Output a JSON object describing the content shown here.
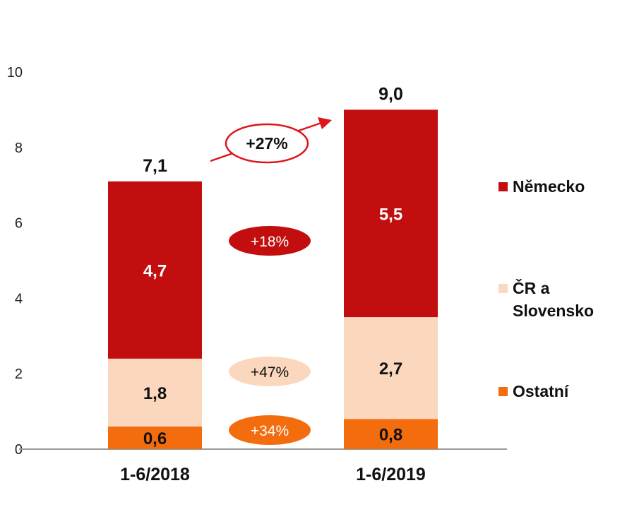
{
  "chart_data": {
    "type": "bar",
    "stacked": true,
    "categories": [
      "1-6/2018",
      "1-6/2019"
    ],
    "series": [
      {
        "name": "Ostatní",
        "values": [
          0.6,
          0.8
        ],
        "labels": [
          "0,6",
          "0,8"
        ],
        "color": "#F36C0E",
        "label_color": "#111111"
      },
      {
        "name": "ČR a Slovensko",
        "values": [
          1.8,
          2.7
        ],
        "labels": [
          "1,8",
          "2,7"
        ],
        "color": "#FAD7BD",
        "label_color": "#111111"
      },
      {
        "name": "Německo",
        "values": [
          4.7,
          5.5
        ],
        "labels": [
          "4,7",
          "5,5"
        ],
        "color": "#C20E0E",
        "label_color": "#ffffff"
      }
    ],
    "totals": [
      {
        "value": 7.1,
        "label": "7,1"
      },
      {
        "value": 9.0,
        "label": "9,0"
      }
    ],
    "yticks": [
      "0",
      "2",
      "4",
      "6",
      "8",
      "10"
    ],
    "ylim": [
      0,
      10
    ],
    "legend_position": "right",
    "growth_badges": [
      {
        "series": "Německo",
        "label": "+18%",
        "fill": "#C20E0E",
        "text_color": "#ffffff"
      },
      {
        "series": "ČR a Slovensko",
        "label": "+47%",
        "fill": "#FAD7BD",
        "text_color": "#111111"
      },
      {
        "series": "Ostatní",
        "label": "+34%",
        "fill": "#F36C0E",
        "text_color": "#ffffff"
      }
    ],
    "total_growth": {
      "label": "+27%",
      "color": "#E0141B"
    }
  }
}
